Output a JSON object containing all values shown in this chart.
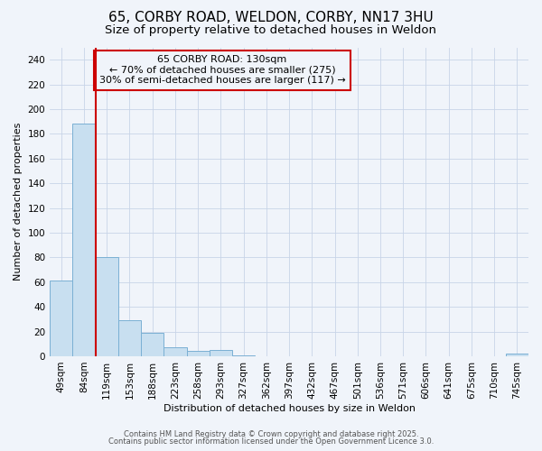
{
  "title1": "65, CORBY ROAD, WELDON, CORBY, NN17 3HU",
  "title2": "Size of property relative to detached houses in Weldon",
  "xlabel": "Distribution of detached houses by size in Weldon",
  "ylabel": "Number of detached properties",
  "categories": [
    "49sqm",
    "84sqm",
    "119sqm",
    "153sqm",
    "188sqm",
    "223sqm",
    "258sqm",
    "293sqm",
    "327sqm",
    "362sqm",
    "397sqm",
    "432sqm",
    "467sqm",
    "501sqm",
    "536sqm",
    "571sqm",
    "606sqm",
    "641sqm",
    "675sqm",
    "710sqm",
    "745sqm"
  ],
  "values": [
    61,
    188,
    80,
    29,
    19,
    7,
    4,
    5,
    1,
    0,
    0,
    0,
    0,
    0,
    0,
    0,
    0,
    0,
    0,
    0,
    2
  ],
  "bar_color": "#c8dff0",
  "bar_edge_color": "#7ab0d4",
  "vline_color": "#cc0000",
  "vline_x_index": 2,
  "annotation_text": "65 CORBY ROAD: 130sqm\n← 70% of detached houses are smaller (275)\n30% of semi-detached houses are larger (117) →",
  "annotation_box_color": "#cc0000",
  "ylim": [
    0,
    250
  ],
  "yticks": [
    0,
    20,
    40,
    60,
    80,
    100,
    120,
    140,
    160,
    180,
    200,
    220,
    240
  ],
  "grid_color": "#c8d4e8",
  "bg_color": "#f0f4fa",
  "footer1": "Contains HM Land Registry data © Crown copyright and database right 2025.",
  "footer2": "Contains public sector information licensed under the Open Government Licence 3.0.",
  "title1_fontsize": 11,
  "title2_fontsize": 9.5,
  "xlabel_fontsize": 8,
  "ylabel_fontsize": 8,
  "tick_fontsize": 7.5,
  "annotation_fontsize": 8,
  "footer_fontsize": 6
}
